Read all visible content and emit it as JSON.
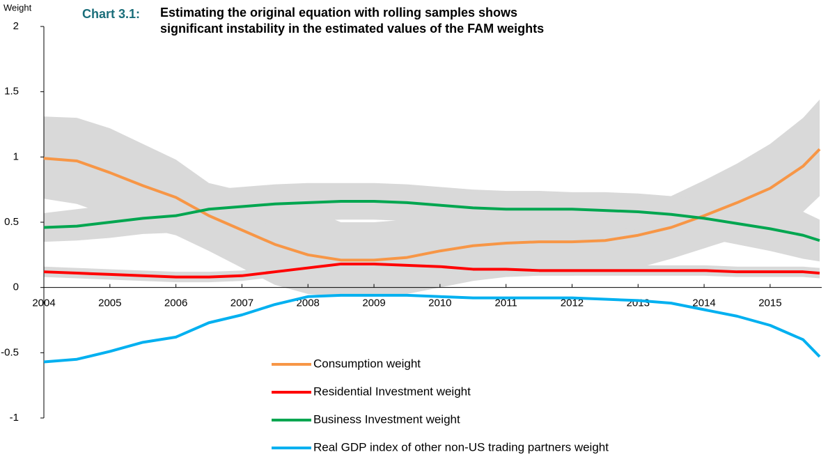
{
  "chart_data": {
    "type": "line",
    "title_label": "Chart 3.1:",
    "title": [
      "Estimating the original equation with rolling samples shows",
      "significant instability in the estimated values of the  FAM weights"
    ],
    "y_label": "Weight",
    "x": [
      2004,
      2004.5,
      2005,
      2005.5,
      2006,
      2006.5,
      2007,
      2007.5,
      2008,
      2008.5,
      2009,
      2009.5,
      2010,
      2010.5,
      2011,
      2011.5,
      2012,
      2012.5,
      2013,
      2013.5,
      2014,
      2014.5,
      2015,
      2015.5,
      2015.75
    ],
    "xlim": [
      2004,
      2015.75
    ],
    "xticks": [
      2004,
      2005,
      2006,
      2007,
      2008,
      2009,
      2010,
      2011,
      2012,
      2013,
      2014,
      2015
    ],
    "ylim": [
      -1,
      2
    ],
    "yticks": [
      2,
      1.5,
      1,
      0.5,
      0,
      -0.5,
      -1
    ],
    "legend": "bottom",
    "band_color": "#d9d9d9",
    "series": [
      {
        "name": "Consumption weight",
        "color": "#f79646",
        "values": [
          0.99,
          0.97,
          0.88,
          0.78,
          0.69,
          0.55,
          0.44,
          0.33,
          0.25,
          0.21,
          0.21,
          0.23,
          0.28,
          0.32,
          0.34,
          0.35,
          0.35,
          0.36,
          0.4,
          0.46,
          0.55,
          0.65,
          0.76,
          0.93,
          1.06
        ],
        "upper": [
          1.31,
          1.3,
          1.22,
          1.1,
          0.98,
          0.8,
          0.74,
          0.68,
          0.6,
          0.5,
          0.5,
          0.52,
          0.55,
          0.57,
          0.58,
          0.58,
          0.59,
          0.6,
          0.63,
          0.7,
          0.82,
          0.95,
          1.1,
          1.3,
          1.44
        ],
        "lower": [
          0.68,
          0.64,
          0.55,
          0.46,
          0.4,
          0.28,
          0.15,
          0.02,
          -0.05,
          -0.07,
          -0.07,
          -0.05,
          0.0,
          0.05,
          0.08,
          0.09,
          0.09,
          0.1,
          0.15,
          0.22,
          0.3,
          0.38,
          0.45,
          0.58,
          0.7
        ]
      },
      {
        "name": "Residential Investment weight",
        "color": "#ff0000",
        "values": [
          0.12,
          0.11,
          0.1,
          0.09,
          0.08,
          0.08,
          0.09,
          0.12,
          0.15,
          0.18,
          0.18,
          0.17,
          0.16,
          0.14,
          0.14,
          0.13,
          0.13,
          0.13,
          0.13,
          0.13,
          0.13,
          0.12,
          0.12,
          0.12,
          0.11
        ],
        "upper": [
          0.16,
          0.15,
          0.14,
          0.13,
          0.12,
          0.12,
          0.13,
          0.16,
          0.2,
          0.22,
          0.22,
          0.21,
          0.2,
          0.18,
          0.18,
          0.17,
          0.17,
          0.17,
          0.17,
          0.17,
          0.17,
          0.16,
          0.16,
          0.16,
          0.15
        ],
        "lower": [
          0.08,
          0.07,
          0.06,
          0.05,
          0.04,
          0.04,
          0.05,
          0.08,
          0.11,
          0.14,
          0.14,
          0.13,
          0.12,
          0.1,
          0.1,
          0.09,
          0.09,
          0.09,
          0.09,
          0.09,
          0.09,
          0.08,
          0.08,
          0.08,
          0.07
        ]
      },
      {
        "name": "Business Investment weight",
        "color": "#00a650",
        "values": [
          0.46,
          0.47,
          0.5,
          0.53,
          0.55,
          0.6,
          0.62,
          0.64,
          0.65,
          0.66,
          0.66,
          0.65,
          0.63,
          0.61,
          0.6,
          0.6,
          0.6,
          0.59,
          0.58,
          0.56,
          0.53,
          0.49,
          0.45,
          0.4,
          0.36
        ],
        "upper": [
          0.57,
          0.6,
          0.63,
          0.66,
          0.7,
          0.75,
          0.77,
          0.79,
          0.8,
          0.8,
          0.8,
          0.79,
          0.77,
          0.75,
          0.74,
          0.74,
          0.73,
          0.73,
          0.72,
          0.7,
          0.68,
          0.66,
          0.63,
          0.58,
          0.52
        ],
        "lower": [
          0.35,
          0.36,
          0.38,
          0.41,
          0.42,
          0.45,
          0.47,
          0.5,
          0.51,
          0.52,
          0.52,
          0.51,
          0.5,
          0.48,
          0.47,
          0.47,
          0.47,
          0.46,
          0.44,
          0.42,
          0.38,
          0.33,
          0.28,
          0.22,
          0.2
        ]
      },
      {
        "name": "Real GDP index of other non-US trading partners weight",
        "color": "#00b0f0",
        "values": [
          -0.57,
          -0.55,
          -0.49,
          -0.42,
          -0.38,
          -0.27,
          -0.21,
          -0.13,
          -0.07,
          -0.06,
          -0.06,
          -0.06,
          -0.07,
          -0.08,
          -0.08,
          -0.08,
          -0.08,
          -0.09,
          -0.1,
          -0.12,
          -0.17,
          -0.22,
          -0.29,
          -0.4,
          -0.53
        ]
      }
    ]
  }
}
